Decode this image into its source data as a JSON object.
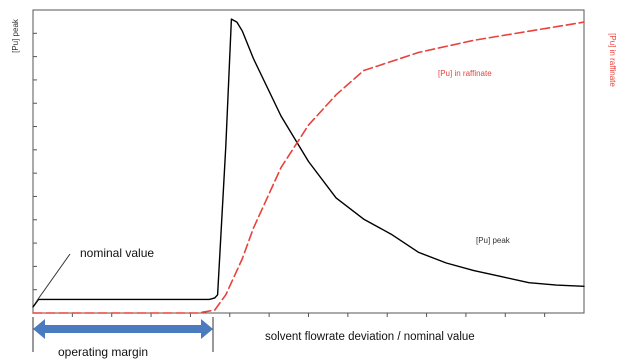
{
  "chart_data": {
    "type": "line",
    "title": "",
    "xlabel": "solvent flowrate deviation / nominal value",
    "ylabel_left": "[Pu] peak",
    "ylabel_right": "[Pu] in raffinate",
    "xlim": [
      0,
      1
    ],
    "ylim": [
      0,
      1
    ],
    "grid": false,
    "series": [
      {
        "name": "[Pu] peak",
        "style": "solid",
        "color": "#000000",
        "x": [
          0.0,
          0.01,
          0.05,
          0.1,
          0.2,
          0.3,
          0.32,
          0.33,
          0.335,
          0.35,
          0.36,
          0.37,
          0.38,
          0.4,
          0.45,
          0.5,
          0.55,
          0.6,
          0.65,
          0.7,
          0.75,
          0.8,
          0.85,
          0.9,
          0.95,
          1.0
        ],
        "y": [
          0.02,
          0.045,
          0.045,
          0.045,
          0.045,
          0.045,
          0.045,
          0.05,
          0.06,
          0.55,
          0.97,
          0.96,
          0.93,
          0.84,
          0.65,
          0.5,
          0.38,
          0.31,
          0.26,
          0.2,
          0.165,
          0.14,
          0.12,
          0.1,
          0.092,
          0.088
        ]
      },
      {
        "name": "[Pu] in raffinate",
        "style": "dashed",
        "color": "#e8423c",
        "x": [
          0.0,
          0.1,
          0.2,
          0.3,
          0.33,
          0.35,
          0.38,
          0.4,
          0.45,
          0.5,
          0.55,
          0.6,
          0.65,
          0.7,
          0.8,
          0.9,
          1.0
        ],
        "y": [
          0.0,
          0.0,
          0.0,
          0.0,
          0.01,
          0.06,
          0.18,
          0.28,
          0.48,
          0.62,
          0.72,
          0.8,
          0.83,
          0.86,
          0.9,
          0.93,
          0.96
        ]
      }
    ],
    "annotations": {
      "peak_label": "[Pu] peak",
      "raffinate_label": "[Pu] in raffinate",
      "nominal_label": "nominal value",
      "operating_margin_label": "operating margin"
    },
    "operating_margin_range": [
      0.0,
      0.33
    ]
  }
}
